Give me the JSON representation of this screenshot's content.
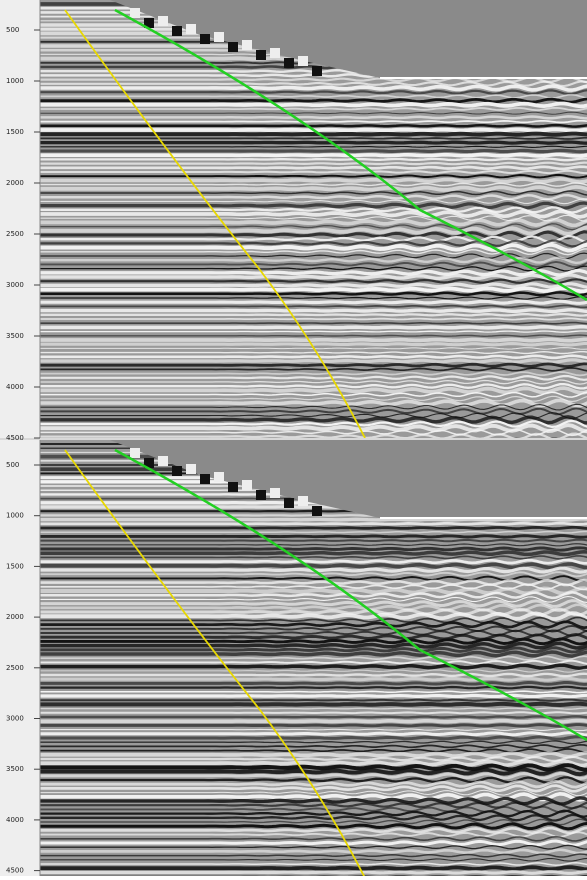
{
  "panels": [
    {
      "axis_labels": [
        "500",
        "1000",
        "1500",
        "2000",
        "2500",
        "3000",
        "3500",
        "4000",
        "4500"
      ]
    },
    {
      "axis_labels": [
        "500",
        "1000",
        "1500",
        "2000",
        "2500",
        "3000",
        "3500",
        "4000",
        "4500"
      ]
    }
  ]
}
